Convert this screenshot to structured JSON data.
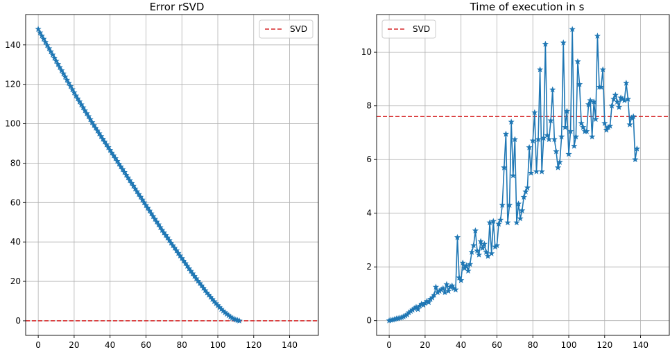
{
  "colors": {
    "series": "#1f77b4",
    "svd": "#d62728",
    "grid": "#b0b0b0"
  },
  "chart_data": [
    {
      "type": "line",
      "title": "Error rSVD",
      "marker": "star",
      "grid": true,
      "legend": {
        "placement": "top-right",
        "entries": [
          "SVD"
        ]
      },
      "xlim": [
        -7,
        156
      ],
      "ylim": [
        -7.4,
        155.4
      ],
      "xticks": [
        0,
        20,
        40,
        60,
        80,
        100,
        120,
        140
      ],
      "yticks": [
        0,
        20,
        40,
        60,
        80,
        100,
        120,
        140
      ],
      "series": [
        {
          "style": "solid-with-star-markers",
          "x_start": 0,
          "x_step": 1,
          "values": [
            148,
            146.2,
            144.6,
            143,
            141.4,
            139.8,
            138.2,
            136.6,
            135,
            133.4,
            131.8,
            130.2,
            128.6,
            127,
            125.4,
            123.8,
            122.2,
            120.6,
            119,
            117.4,
            115.8,
            114.2,
            112.7,
            111.2,
            109.7,
            108.2,
            106.7,
            105.2,
            103.7,
            102.2,
            100.7,
            99.2,
            97.8,
            96.4,
            95,
            93.6,
            92.2,
            90.8,
            89.4,
            88,
            86.6,
            85.2,
            83.8,
            82.4,
            81,
            79.6,
            78.2,
            76.8,
            75.4,
            74,
            72.6,
            71.2,
            69.8,
            68.4,
            67,
            65.6,
            64.2,
            62.8,
            61.4,
            60,
            58.6,
            57.2,
            55.8,
            54.4,
            53,
            51.6,
            50.2,
            48.8,
            47.4,
            46,
            44.7,
            43.4,
            42.1,
            40.8,
            39.5,
            38.2,
            36.9,
            35.6,
            34.3,
            33,
            31.7,
            30.4,
            29.1,
            27.8,
            26.5,
            25.2,
            23.9,
            22.6,
            21.4,
            20.2,
            19,
            17.8,
            16.6,
            15.4,
            14.2,
            13.1,
            12,
            10.9,
            9.8,
            8.8,
            7.8,
            6.8,
            5.9,
            5,
            4.2,
            3.4,
            2.7,
            2,
            1.4,
            0.9,
            0.5,
            0.2,
            0
          ]
        },
        {
          "name": "SVD",
          "style": "dashed",
          "y": 0
        }
      ]
    },
    {
      "type": "line",
      "title": "Time of execution in s",
      "marker": "star",
      "grid": true,
      "legend": {
        "placement": "top-left",
        "entries": [
          "SVD"
        ]
      },
      "xlim": [
        -7,
        156
      ],
      "ylim": [
        -0.55,
        11.4
      ],
      "xticks": [
        0,
        20,
        40,
        60,
        80,
        100,
        120,
        140
      ],
      "yticks": [
        0,
        2,
        4,
        6,
        8,
        10
      ],
      "series": [
        {
          "style": "solid-with-star-markers",
          "x_start": 0,
          "x_step": 1,
          "values": [
            0,
            0.02,
            0.03,
            0.05,
            0.07,
            0.08,
            0.1,
            0.12,
            0.15,
            0.18,
            0.22,
            0.3,
            0.35,
            0.4,
            0.45,
            0.5,
            0.42,
            0.55,
            0.62,
            0.58,
            0.65,
            0.72,
            0.68,
            0.8,
            0.85,
            0.95,
            1.25,
            1.05,
            1.1,
            1.15,
            1.2,
            1.05,
            1.35,
            1.1,
            1.25,
            1.3,
            1.2,
            1.15,
            3.1,
            1.6,
            1.5,
            2.15,
            1.95,
            2.05,
            1.85,
            2.1,
            2.55,
            2.8,
            3.35,
            2.6,
            2.45,
            2.95,
            2.7,
            2.85,
            2.55,
            2.4,
            3.65,
            2.5,
            3.7,
            2.75,
            2.8,
            3.6,
            3.75,
            4.3,
            5.7,
            6.95,
            3.65,
            4.3,
            7.4,
            5.4,
            6.75,
            3.65,
            4.35,
            3.8,
            4.1,
            4.6,
            4.8,
            4.95,
            6.45,
            5.5,
            6.7,
            7.75,
            5.55,
            6.75,
            9.35,
            5.55,
            6.8,
            10.3,
            6.9,
            6.75,
            7.45,
            8.6,
            6.75,
            6.3,
            5.7,
            5.9,
            6.85,
            10.35,
            7.2,
            7.8,
            6.2,
            7.05,
            10.85,
            6.5,
            6.85,
            9.65,
            8.8,
            7.35,
            7.2,
            7.05,
            7.05,
            8.05,
            8.2,
            6.85,
            8.15,
            7.5,
            10.6,
            8.7,
            8.7,
            9.35,
            7.35,
            7.1,
            7.2,
            7.25,
            8,
            8.25,
            8.4,
            8.15,
            7.95,
            8.3,
            8.25,
            8.2,
            8.85,
            8.25,
            7.3,
            7.55,
            7.6,
            6,
            6.4
          ]
        },
        {
          "name": "SVD",
          "style": "dashed",
          "y": 7.6
        }
      ]
    }
  ]
}
